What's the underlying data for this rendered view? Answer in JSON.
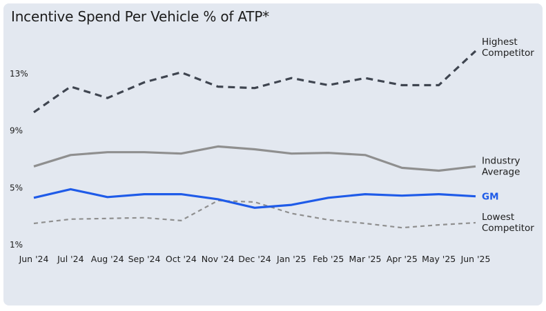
{
  "title": "Incentive Spend Per Vehicle % of ATP*",
  "chart_data": {
    "type": "line",
    "title": "Incentive Spend Per Vehicle % of ATP*",
    "categories": [
      "Jun '24",
      "Jul '24",
      "Aug '24",
      "Sep '24",
      "Oct '24",
      "Nov '24",
      "Dec '24",
      "Jan '25",
      "Feb '25",
      "Mar '25",
      "Apr '25",
      "May '25",
      "Jun '25"
    ],
    "y_ticks": [
      "13%",
      "9%",
      "5%",
      "1%"
    ],
    "ylim": [
      1,
      13
    ],
    "grid": false,
    "series": [
      {
        "name": "Highest Competitor",
        "label_lines": [
          "Highest",
          "Competitor"
        ],
        "color": "#3f4550",
        "dash": "10 7",
        "width": 3.2,
        "label_color": "#1c1c1c",
        "label_bold": false,
        "values": [
          10.3,
          12.1,
          11.3,
          12.4,
          13.1,
          12.1,
          12.0,
          12.7,
          12.2,
          12.7,
          12.2,
          12.2,
          14.6
        ]
      },
      {
        "name": "Industry Average",
        "label_lines": [
          "Industry",
          "Average"
        ],
        "color": "#8f8f8f",
        "dash": "",
        "width": 3.2,
        "label_color": "#1c1c1c",
        "label_bold": false,
        "values": [
          6.5,
          7.3,
          7.5,
          7.5,
          7.4,
          7.9,
          7.7,
          7.4,
          7.45,
          7.3,
          6.4,
          6.2,
          6.5
        ]
      },
      {
        "name": "GM",
        "label_lines": [
          "GM"
        ],
        "color": "#1f5be8",
        "dash": "",
        "width": 3.2,
        "label_color": "#1f5be8",
        "label_bold": true,
        "values": [
          4.3,
          4.9,
          4.35,
          4.55,
          4.55,
          4.2,
          3.6,
          3.8,
          4.3,
          4.55,
          4.45,
          4.55,
          4.4
        ]
      },
      {
        "name": "Lowest Competitor",
        "label_lines": [
          "Lowest",
          "Competitor"
        ],
        "color": "#8f8f8f",
        "dash": "6 5",
        "width": 2.2,
        "label_color": "#1c1c1c",
        "label_bold": false,
        "values": [
          2.5,
          2.8,
          2.85,
          2.9,
          2.7,
          4.1,
          4.0,
          3.2,
          2.75,
          2.5,
          2.2,
          2.4,
          2.55
        ]
      }
    ]
  }
}
